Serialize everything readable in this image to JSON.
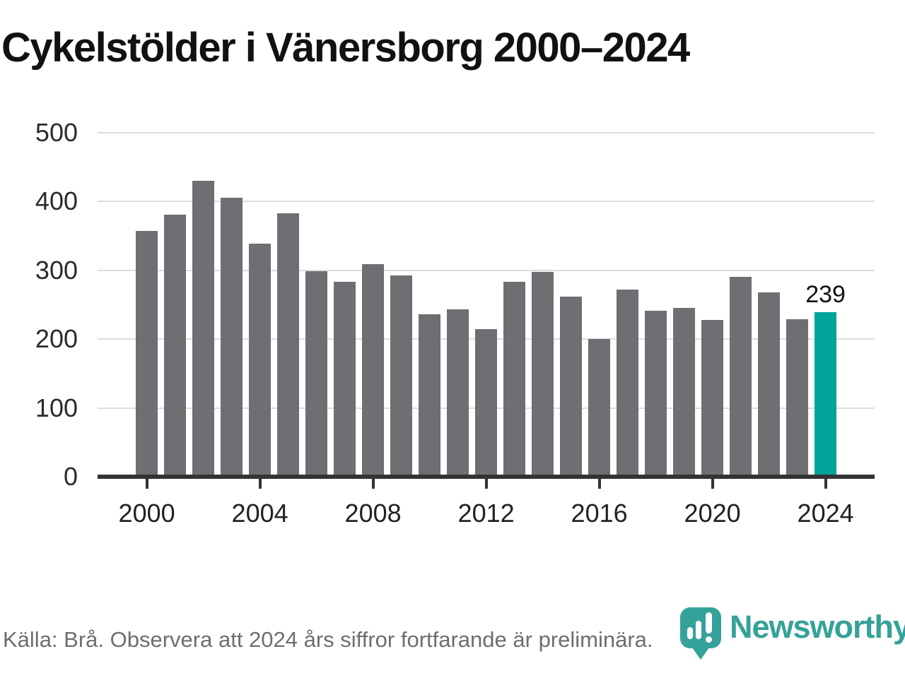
{
  "title": "Cykelstölder i Vänersborg 2000–2024",
  "chart_data": {
    "type": "bar",
    "title": "Cykelstölder i Vänersborg 2000–2024",
    "categories": [
      2000,
      2001,
      2002,
      2003,
      2004,
      2005,
      2006,
      2007,
      2008,
      2009,
      2010,
      2011,
      2012,
      2013,
      2014,
      2015,
      2016,
      2017,
      2018,
      2019,
      2020,
      2021,
      2022,
      2023,
      2024
    ],
    "values": [
      357,
      381,
      430,
      406,
      339,
      383,
      299,
      283,
      309,
      293,
      236,
      243,
      215,
      283,
      298,
      262,
      200,
      272,
      241,
      245,
      228,
      291,
      268,
      229,
      239
    ],
    "highlight_index": 24,
    "highlight_label": "239",
    "xlabel": "",
    "ylabel": "",
    "ylim": [
      0,
      500
    ],
    "yticks": [
      0,
      100,
      200,
      300,
      400,
      500
    ],
    "xticks": [
      2000,
      2004,
      2008,
      2012,
      2016,
      2020,
      2024
    ],
    "grid": "horizontal",
    "legend": "none",
    "colors": {
      "bar": "#6e6e73",
      "highlight": "#00a49a",
      "axis": "#333333",
      "gridline": "#dcdcdc"
    }
  },
  "footer": {
    "source_note": "Källa: Brå. Observera att 2024 års siffror fortfarande är preliminära."
  },
  "branding": {
    "logo_text": "Newsworthy",
    "logo_color": "#35a29a",
    "logo_icon": "newsworthy-pin-logo-icon"
  }
}
